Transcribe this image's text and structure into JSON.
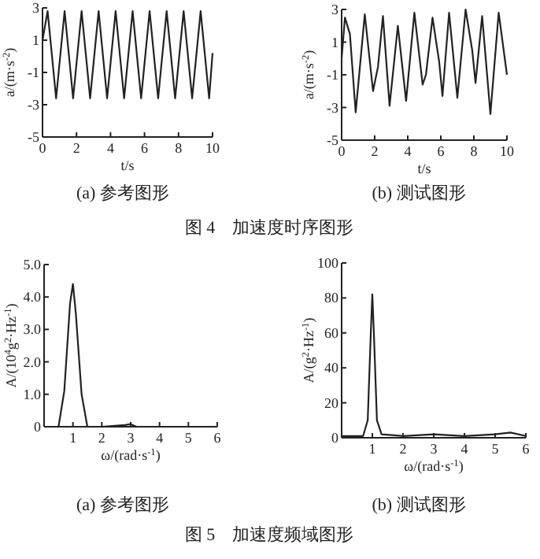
{
  "chart_data": [
    {
      "type": "line",
      "title": "(a) 参考图形",
      "xlabel": "t/s",
      "ylabel": "a/(m·s$^{-2}$)",
      "annotations": [
        "图 4　加速度时序图形"
      ],
      "color": "#222222",
      "xlim": [
        0,
        10
      ],
      "ylim": [
        -5,
        3
      ],
      "xticks": [
        0,
        2,
        4,
        6,
        8,
        10
      ],
      "yticks": [
        -5,
        -3,
        -1,
        1,
        3
      ],
      "x": [
        0,
        0.3,
        0.8,
        1.3,
        1.8,
        2.3,
        2.8,
        3.3,
        3.8,
        4.3,
        4.8,
        5.3,
        5.8,
        6.3,
        6.8,
        7.3,
        7.8,
        8.3,
        8.8,
        9.3,
        9.8,
        10
      ],
      "values": [
        1.0,
        2.8,
        -2.6,
        2.8,
        -2.6,
        2.8,
        -2.6,
        2.8,
        -2.6,
        2.8,
        -2.6,
        2.8,
        -2.6,
        2.8,
        -2.6,
        2.8,
        -2.6,
        2.8,
        -2.6,
        2.8,
        -2.6,
        0.2
      ]
    },
    {
      "type": "line",
      "title": "(b) 测试图形",
      "xlabel": "t/s",
      "ylabel": "a/(m·s$^{-2}$)",
      "color": "#222222",
      "xlim": [
        0,
        10
      ],
      "ylim": [
        -5,
        3
      ],
      "xticks": [
        0,
        2,
        4,
        6,
        8,
        10
      ],
      "yticks": [
        -5,
        -3,
        -1,
        1,
        3
      ],
      "x": [
        0,
        0.2,
        0.5,
        0.85,
        1.4,
        1.9,
        2.2,
        2.5,
        2.9,
        3.4,
        3.9,
        4.4,
        4.9,
        5.1,
        5.5,
        5.9,
        6.1,
        6.5,
        7.0,
        7.5,
        7.9,
        8.1,
        8.5,
        9.0,
        9.5,
        10
      ],
      "values": [
        0,
        2.5,
        1.5,
        -3.3,
        2.7,
        -2.0,
        -0.5,
        2.6,
        -2.9,
        2.0,
        -2.6,
        2.8,
        -1.6,
        -1.0,
        2.5,
        -0.2,
        -2.3,
        2.8,
        -2.4,
        3.0,
        0.5,
        -1.5,
        2.6,
        -3.4,
        2.8,
        -1.0
      ]
    },
    {
      "type": "line",
      "title": "(a) 参考图形",
      "xlabel": "ω/(rad·s$^{-1}$)",
      "ylabel": "A/(10$^{4}$g$^{2}$·Hz$^{-1}$)",
      "annotations": [
        "图 5　加速度频域图形"
      ],
      "color": "#222222",
      "xlim": [
        0,
        6
      ],
      "ylim": [
        0,
        5
      ],
      "xticks": [
        1,
        2,
        3,
        4,
        5,
        6
      ],
      "yticks": [
        0,
        {
          "value": 1,
          "label": "1.0"
        },
        {
          "value": 2,
          "label": "2.0"
        },
        {
          "value": 3,
          "label": "3.0"
        },
        {
          "value": 4,
          "label": "4.0"
        },
        {
          "value": 5,
          "label": "5.0"
        }
      ],
      "x": [
        0,
        0.5,
        0.7,
        0.9,
        1.0,
        1.1,
        1.3,
        1.5,
        2.0,
        2.8,
        3.0,
        3.2,
        4.0,
        6.0
      ],
      "values": [
        0,
        0,
        1.1,
        3.8,
        4.4,
        3.5,
        1.0,
        0,
        0,
        0.05,
        0.08,
        0,
        0,
        0
      ]
    },
    {
      "type": "line",
      "title": "(b) 测试图形",
      "xlabel": "ω/(rad·s$^{-1}$)",
      "ylabel": "A/(g$^{2}$·Hz$^{-1}$)",
      "color": "#222222",
      "xlim": [
        0,
        6
      ],
      "ylim": [
        0,
        100
      ],
      "xticks": [
        1,
        2,
        3,
        4,
        5,
        6
      ],
      "yticks": [
        0,
        20,
        40,
        60,
        80,
        100
      ],
      "x": [
        0,
        0.7,
        0.85,
        0.95,
        1.0,
        1.05,
        1.15,
        1.3,
        2.0,
        3.0,
        4.0,
        5.0,
        5.5,
        6.0
      ],
      "values": [
        1,
        1,
        10,
        60,
        82,
        60,
        10,
        2,
        1,
        2,
        1,
        2,
        3,
        1
      ]
    }
  ]
}
